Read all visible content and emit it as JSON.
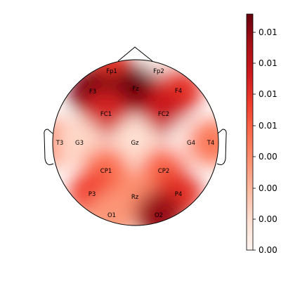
{
  "chart_data": {
    "type": "heatmap",
    "colormap": "Reds",
    "title": "",
    "colorbar": {
      "ticks": [
        "0.00",
        "0.00",
        "0.00",
        "0.00",
        "0.01",
        "0.01",
        "0.01",
        "0.01"
      ],
      "range": [
        0.0,
        0.0166
      ],
      "placement": "right"
    },
    "electrodes": [
      {
        "name": "Fp1",
        "value": 0.0105
      },
      {
        "name": "Fp2",
        "value": 0.0004
      },
      {
        "name": "F3",
        "value": 0.016
      },
      {
        "name": "Fz",
        "value": 0.0165
      },
      {
        "name": "F4",
        "value": 0.011
      },
      {
        "name": "FC1",
        "value": 0.012
      },
      {
        "name": "FC2",
        "value": 0.0125
      },
      {
        "name": "T3",
        "value": 0.007
      },
      {
        "name": "G3",
        "value": 0.0025
      },
      {
        "name": "Gz",
        "value": 0.002
      },
      {
        "name": "G4",
        "value": 0.0002
      },
      {
        "name": "T4",
        "value": 0.0075
      },
      {
        "name": "CP1",
        "value": 0.008
      },
      {
        "name": "CP2",
        "value": 0.0085
      },
      {
        "name": "P3",
        "value": 0.01
      },
      {
        "name": "Rz",
        "value": 0.0065
      },
      {
        "name": "P4",
        "value": 0.011
      },
      {
        "name": "O1",
        "value": 0.006
      },
      {
        "name": "O2",
        "value": 0.015
      }
    ]
  }
}
